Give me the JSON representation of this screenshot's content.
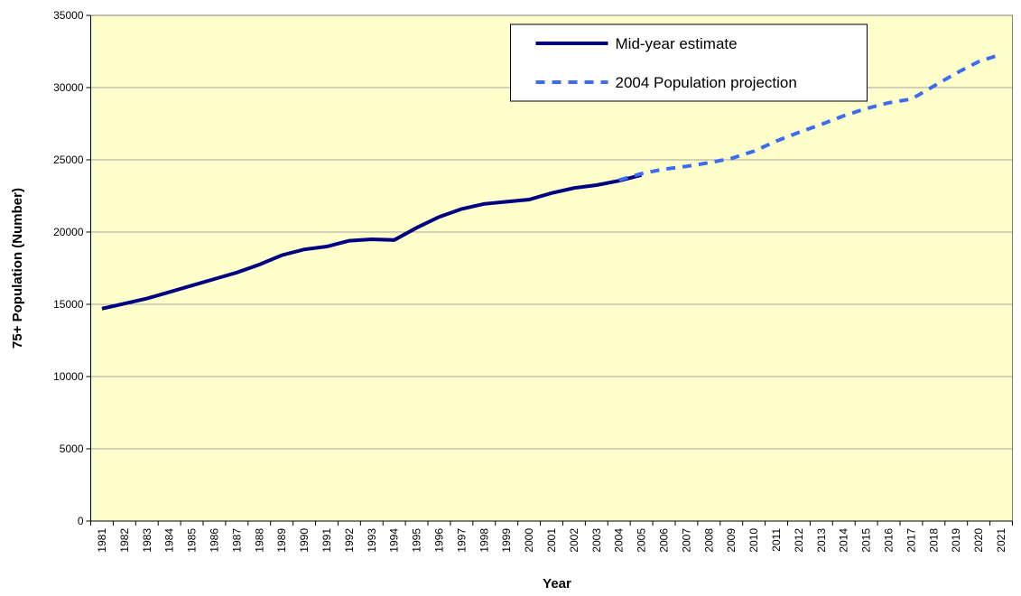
{
  "chart_data": {
    "type": "line",
    "x_label": "Year",
    "y_label": "75+ Population (Number)",
    "categories": [
      "1981",
      "1982",
      "1983",
      "1984",
      "1985",
      "1986",
      "1987",
      "1988",
      "1989",
      "1990",
      "1991",
      "1992",
      "1993",
      "1994",
      "1995",
      "1996",
      "1997",
      "1998",
      "1999",
      "2000",
      "2001",
      "2002",
      "2003",
      "2004",
      "2005",
      "2006",
      "2007",
      "2008",
      "2009",
      "2010",
      "2011",
      "2012",
      "2013",
      "2014",
      "2015",
      "2016",
      "2017",
      "2018",
      "2019",
      "2020",
      "2021"
    ],
    "series": [
      {
        "name": "Mid-year estimate",
        "color": "#000080",
        "line_style": "solid",
        "values": [
          14700,
          15050,
          15400,
          15850,
          16300,
          16750,
          17200,
          17750,
          18400,
          18800,
          19000,
          19400,
          19500,
          19450,
          20300,
          21050,
          21600,
          21950,
          22100,
          22250,
          22700,
          23050,
          23250,
          23550,
          23950,
          null,
          null,
          null,
          null,
          null,
          null,
          null,
          null,
          null,
          null,
          null,
          null,
          null,
          null,
          null,
          null
        ]
      },
      {
        "name": "2004 Population projection",
        "color": "#3c6cf0",
        "line_style": "dashed",
        "values": [
          null,
          null,
          null,
          null,
          null,
          null,
          null,
          null,
          null,
          null,
          null,
          null,
          null,
          null,
          null,
          null,
          null,
          null,
          null,
          null,
          null,
          null,
          null,
          23600,
          24050,
          24350,
          24550,
          24800,
          25100,
          25600,
          26300,
          26900,
          27450,
          28050,
          28550,
          28950,
          29200,
          30100,
          31000,
          31800,
          32300
        ]
      }
    ],
    "ylim": [
      0,
      35000
    ],
    "yticks": [
      0,
      5000,
      10000,
      15000,
      20000,
      25000,
      30000,
      35000
    ],
    "grid": true,
    "legend": "top-right",
    "plot_background": "#ffffcc"
  }
}
